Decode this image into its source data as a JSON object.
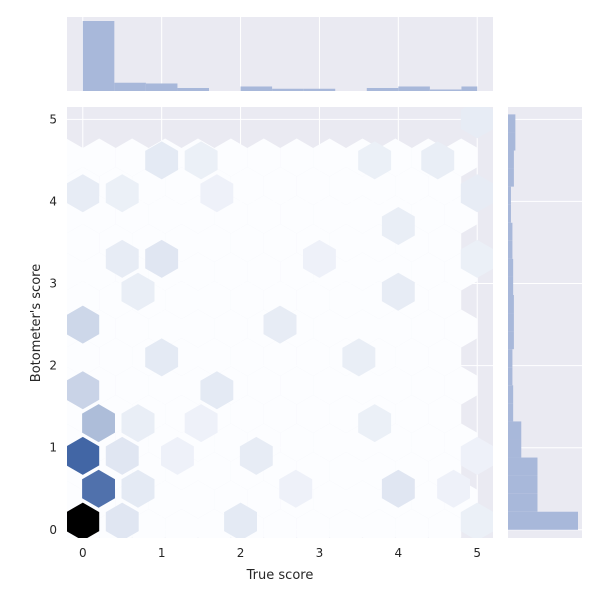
{
  "chart_data": {
    "type": "hexbin-jointplot",
    "xlabel": "True score",
    "ylabel": "Botometer's score",
    "xlim": [
      -0.2,
      5.2
    ],
    "ylim": [
      -0.1,
      5.15
    ],
    "x_ticks": [
      0,
      1,
      2,
      3,
      4,
      5
    ],
    "y_ticks": [
      0,
      1,
      2,
      3,
      4,
      5
    ],
    "grid": true,
    "colors": {
      "panel_bg": "#eaeaf2",
      "grid": "#ffffff",
      "hex_low": "#f7f9fd",
      "hex_high": "#3d62a3",
      "hex_max": "#000000",
      "hist_fill": "#a8b8da"
    },
    "hexbins": [
      {
        "x": 0.0,
        "y": 0.1,
        "density": 1.0
      },
      {
        "x": 0.2,
        "y": 0.5,
        "density": 0.72
      },
      {
        "x": 0.0,
        "y": 0.9,
        "density": 0.78
      },
      {
        "x": 0.2,
        "y": 1.3,
        "density": 0.32
      },
      {
        "x": 0.0,
        "y": 1.7,
        "density": 0.2
      },
      {
        "x": 0.0,
        "y": 2.5,
        "density": 0.18
      },
      {
        "x": 0.5,
        "y": 0.1,
        "density": 0.1
      },
      {
        "x": 0.5,
        "y": 0.9,
        "density": 0.1
      },
      {
        "x": 0.7,
        "y": 0.5,
        "density": 0.08
      },
      {
        "x": 0.7,
        "y": 1.3,
        "density": 0.06
      },
      {
        "x": 0.5,
        "y": 3.3,
        "density": 0.07
      },
      {
        "x": 1.0,
        "y": 3.3,
        "density": 0.1
      },
      {
        "x": 1.0,
        "y": 2.1,
        "density": 0.08
      },
      {
        "x": 1.0,
        "y": 4.5,
        "density": 0.08
      },
      {
        "x": 0.7,
        "y": 2.9,
        "density": 0.06
      },
      {
        "x": 0.0,
        "y": 4.1,
        "density": 0.07
      },
      {
        "x": 0.5,
        "y": 4.1,
        "density": 0.05
      },
      {
        "x": 1.7,
        "y": 1.7,
        "density": 0.08
      },
      {
        "x": 2.0,
        "y": 0.1,
        "density": 0.08
      },
      {
        "x": 2.2,
        "y": 0.9,
        "density": 0.07
      },
      {
        "x": 2.5,
        "y": 2.5,
        "density": 0.07
      },
      {
        "x": 3.5,
        "y": 2.1,
        "density": 0.06
      },
      {
        "x": 3.7,
        "y": 1.3,
        "density": 0.05
      },
      {
        "x": 4.0,
        "y": 0.5,
        "density": 0.1
      },
      {
        "x": 4.0,
        "y": 2.9,
        "density": 0.07
      },
      {
        "x": 4.0,
        "y": 3.7,
        "density": 0.06
      },
      {
        "x": 3.7,
        "y": 4.5,
        "density": 0.05
      },
      {
        "x": 4.5,
        "y": 4.5,
        "density": 0.06
      },
      {
        "x": 5.0,
        "y": 5.0,
        "density": 0.07
      },
      {
        "x": 5.0,
        "y": 4.1,
        "density": 0.07
      },
      {
        "x": 5.0,
        "y": 3.3,
        "density": 0.05
      },
      {
        "x": 5.0,
        "y": 0.9,
        "density": 0.04
      },
      {
        "x": 4.7,
        "y": 0.5,
        "density": 0.04
      },
      {
        "x": 5.0,
        "y": 0.1,
        "density": 0.05
      },
      {
        "x": 1.2,
        "y": 0.9,
        "density": 0.04
      },
      {
        "x": 1.5,
        "y": 4.5,
        "density": 0.05
      },
      {
        "x": 1.7,
        "y": 4.1,
        "density": 0.04
      },
      {
        "x": 3.0,
        "y": 3.3,
        "density": 0.04
      },
      {
        "x": 1.5,
        "y": 1.3,
        "density": 0.04
      },
      {
        "x": 2.7,
        "y": 0.5,
        "density": 0.04
      }
    ],
    "x_marginal": {
      "bin_edges": [
        0.0,
        0.4,
        0.8,
        1.2,
        1.6,
        2.0,
        2.4,
        2.8,
        3.2,
        3.6,
        4.0,
        4.4,
        4.8,
        5.0
      ],
      "counts": [
        93,
        11,
        10,
        4,
        0,
        6,
        3,
        3,
        0,
        4,
        6,
        2,
        6
      ]
    },
    "y_marginal": {
      "bin_edges": [
        0.0,
        0.22,
        0.44,
        0.66,
        0.88,
        1.1,
        1.32,
        1.54,
        1.76,
        1.98,
        2.2,
        2.42,
        2.64,
        2.86,
        3.08,
        3.3,
        3.52,
        3.74,
        3.96,
        4.18,
        4.4,
        4.62,
        4.84,
        5.06
      ],
      "counts": [
        95,
        40,
        40,
        40,
        18,
        18,
        7,
        7,
        6,
        6,
        8,
        8,
        8,
        7,
        7,
        6,
        6,
        4,
        4,
        8,
        8,
        10,
        10
      ]
    }
  }
}
